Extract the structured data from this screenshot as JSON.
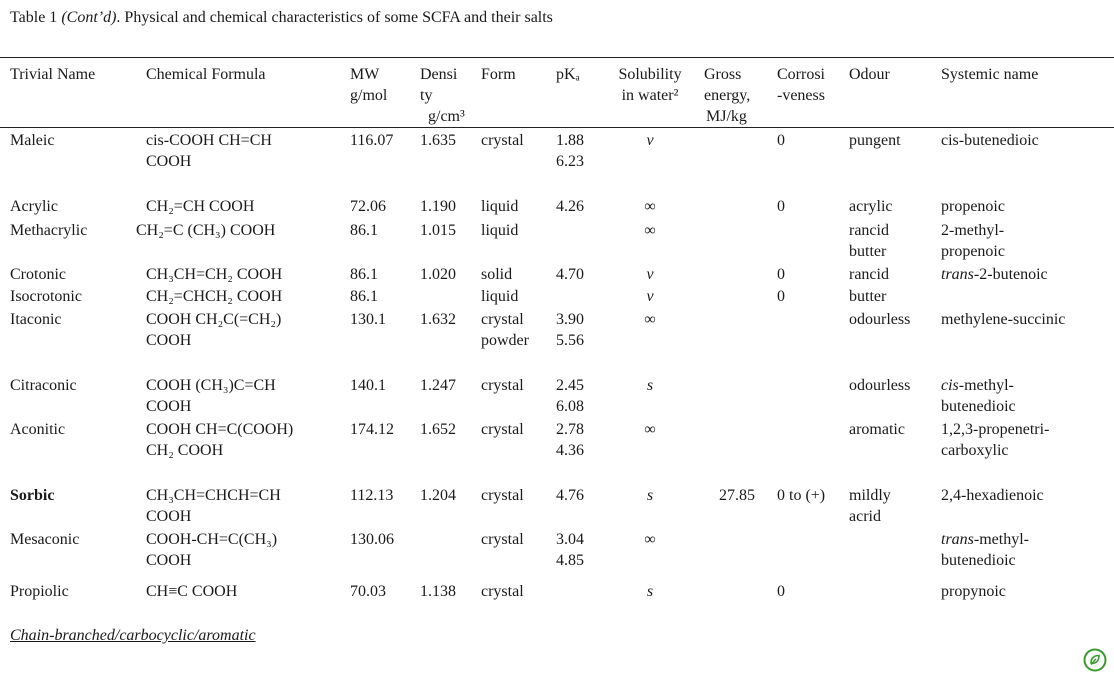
{
  "caption": {
    "prefix": "Table 1 ",
    "italic": "(Cont’d)",
    "rest": ". Physical and chemical characteristics of some SCFA and their salts"
  },
  "headers": {
    "name": "Trivial Name",
    "formula": "Chemical Formula",
    "mw_1": "MW",
    "mw_2": "g/mol",
    "density_1": "Densi",
    "density_2": "ty",
    "density_3": "g/cm³",
    "form": "Form",
    "pka": "pKₐ",
    "sol_1": "Solubility",
    "sol_2": "in water²",
    "gross_1": "Gross",
    "gross_2": "energy,",
    "gross_3": "MJ/kg",
    "corr_1": "Corrosi",
    "corr_2": "-veness",
    "odour": "Odour",
    "sys": "Systemic name"
  },
  "rows": {
    "maleic": {
      "name": "Maleic",
      "f1": "cis-COOH CH=CH",
      "f2": "COOH",
      "mw": "116.07",
      "density": "1.635",
      "form1": "crystal",
      "form2": "",
      "pka1": "1.88",
      "pka2": "6.23",
      "sol": "v",
      "gross": "",
      "corr": "0",
      "odour1": "pungent",
      "odour2": "",
      "sys1": "cis-butenedioic",
      "sys2": ""
    },
    "acrylic": {
      "name": "Acrylic",
      "f1": "CH₂=CH COOH",
      "f2": "",
      "mw": "72.06",
      "density": "1.190",
      "form1": "liquid",
      "form2": "",
      "pka1": "4.26",
      "pka2": "",
      "sol": "∞",
      "gross": "",
      "corr": "0",
      "odour1": "acrylic",
      "odour2": "",
      "sys1": "propenoic",
      "sys2": ""
    },
    "methacrylic": {
      "name": "Methacrylic",
      "f1": "CH₂=C (CH₃) COOH",
      "f2": "",
      "mw": "86.1",
      "density": "1.015",
      "form1": "liquid",
      "form2": "",
      "pka1": "",
      "pka2": "",
      "sol": "∞",
      "gross": "",
      "corr": "",
      "odour1": "rancid",
      "odour2": "butter",
      "sys1": "2-methyl-",
      "sys2": "propenoic"
    },
    "crotonic": {
      "name": "Crotonic",
      "f1": "CH₃CH=CH₂ COOH",
      "f2": "",
      "mw": "86.1",
      "density": "1.020",
      "form1": "solid",
      "form2": "",
      "pka1": "4.70",
      "pka2": "",
      "sol": "v",
      "gross": "",
      "corr": "0",
      "odour1": "rancid",
      "odour2": "",
      "sys1": "trans-2-butenoic",
      "sys2": ""
    },
    "isocrotonic": {
      "name": "Isocrotonic",
      "f1": "CH₂=CHCH₂ COOH",
      "f2": "",
      "mw": "86.1",
      "density": "",
      "form1": "liquid",
      "form2": "",
      "pka1": "",
      "pka2": "",
      "sol": "v",
      "gross": "",
      "corr": "0",
      "odour1": "butter",
      "odour2": "",
      "sys1": "",
      "sys2": ""
    },
    "itaconic": {
      "name": "Itaconic",
      "f1": "COOH CH₂C(=CH₂)",
      "f2": "COOH",
      "mw": "130.1",
      "density": "1.632",
      "form1": "crystal",
      "form2": "powder",
      "pka1": "3.90",
      "pka2": "5.56",
      "sol": "∞",
      "gross": "",
      "corr": "",
      "odour1": "odourless",
      "odour2": "",
      "sys1": "methylene-succinic",
      "sys2": ""
    },
    "citraconic": {
      "name": "Citraconic",
      "f1": "COOH (CH₃)C=CH",
      "f2": "COOH",
      "mw": "140.1",
      "density": "1.247",
      "form1": "crystal",
      "form2": "",
      "pka1": "2.45",
      "pka2": "6.08",
      "sol": "s",
      "gross": "",
      "corr": "",
      "odour1": "odourless",
      "odour2": "",
      "sys1": "cis-methyl-",
      "sys2": "butenedioic"
    },
    "aconitic": {
      "name": "Aconitic",
      "f1": "COOH CH=C(COOH)",
      "f2": "CH₂ COOH",
      "mw": "174.12",
      "density": "1.652",
      "form1": "crystal",
      "form2": "",
      "pka1": "2.78",
      "pka2": "4.36",
      "sol": "∞",
      "gross": "",
      "corr": "",
      "odour1": "aromatic",
      "odour2": "",
      "sys1": "1,2,3-propenetri-",
      "sys2": "carboxylic"
    },
    "sorbic": {
      "name": "Sorbic",
      "f1": "CH₃CH=CHCH=CH",
      "f2": "COOH",
      "mw": "112.13",
      "density": "1.204",
      "form1": "crystal",
      "form2": "",
      "pka1": "4.76",
      "pka2": "",
      "sol": "s",
      "gross": "27.85",
      "corr": "0 to (+)",
      "odour1": "mildly",
      "odour2": "acrid",
      "sys1": "2,4-hexadienoic",
      "sys2": ""
    },
    "mesaconic": {
      "name": "Mesaconic",
      "f1": "COOH-CH=C(CH₃)",
      "f2": "COOH",
      "mw": "130.06",
      "density": "",
      "form1": "crystal",
      "form2": "",
      "pka1": "3.04",
      "pka2": "4.85",
      "sol": "∞",
      "gross": "",
      "corr": "",
      "odour1": "",
      "odour2": "",
      "sys1": "trans-methyl-",
      "sys2": "butenedioic"
    },
    "propiolic": {
      "name": "Propiolic",
      "f1": "CH≡C COOH",
      "f2": "",
      "mw": "70.03",
      "density": "1.138",
      "form1": "crystal",
      "form2": "",
      "pka1": "",
      "pka2": "",
      "sol": "s",
      "gross": "",
      "corr": "0",
      "odour1": "",
      "odour2": "",
      "sys1": "propynoic",
      "sys2": ""
    }
  },
  "footer": "Chain-branched/carbocyclic/aromatic",
  "logo_icon": "leaf-badge-icon",
  "colors": {
    "text": "#1a1a1a",
    "logo": "#3a9a2e"
  }
}
